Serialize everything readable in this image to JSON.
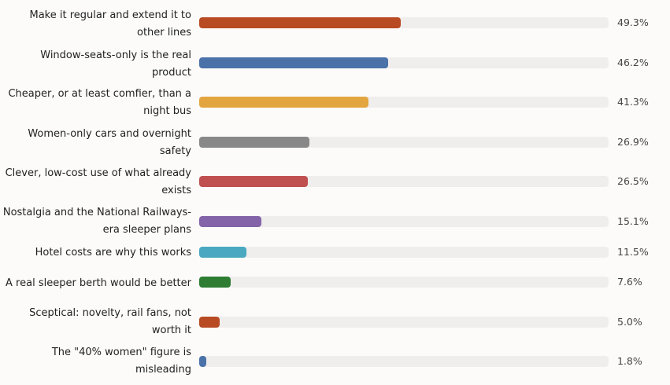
{
  "chart_data": {
    "type": "bar",
    "orientation": "horizontal",
    "xlim": [
      0,
      100
    ],
    "grid": false,
    "categories": [
      "Make it regular and extend it to other lines",
      "Window-seats-only is the real product",
      "Cheaper, or at least comfier, than a night bus",
      "Women-only cars and overnight safety",
      "Clever, low-cost use of what already exists",
      "Nostalgia and the National Railways-era sleeper plans",
      "Hotel costs are why this works",
      "A real sleeper berth would be better",
      "Sceptical: novelty, rail fans, not worth it",
      "The \"40% women\" figure is misleading"
    ],
    "values": [
      49.3,
      46.2,
      41.3,
      26.9,
      26.5,
      15.1,
      11.5,
      7.6,
      5.0,
      1.8
    ],
    "value_labels": [
      "49.3%",
      "46.2%",
      "41.3%",
      "26.9%",
      "26.5%",
      "15.1%",
      "11.5%",
      "7.6%",
      "5.0%",
      "1.8%"
    ],
    "colors": [
      "#b84a24",
      "#4a72a8",
      "#e2a540",
      "#888888",
      "#c05050",
      "#8464a8",
      "#4aa8c0",
      "#2e7d32",
      "#b84a24",
      "#4a72a8"
    ],
    "track_color": "#efeeed"
  }
}
